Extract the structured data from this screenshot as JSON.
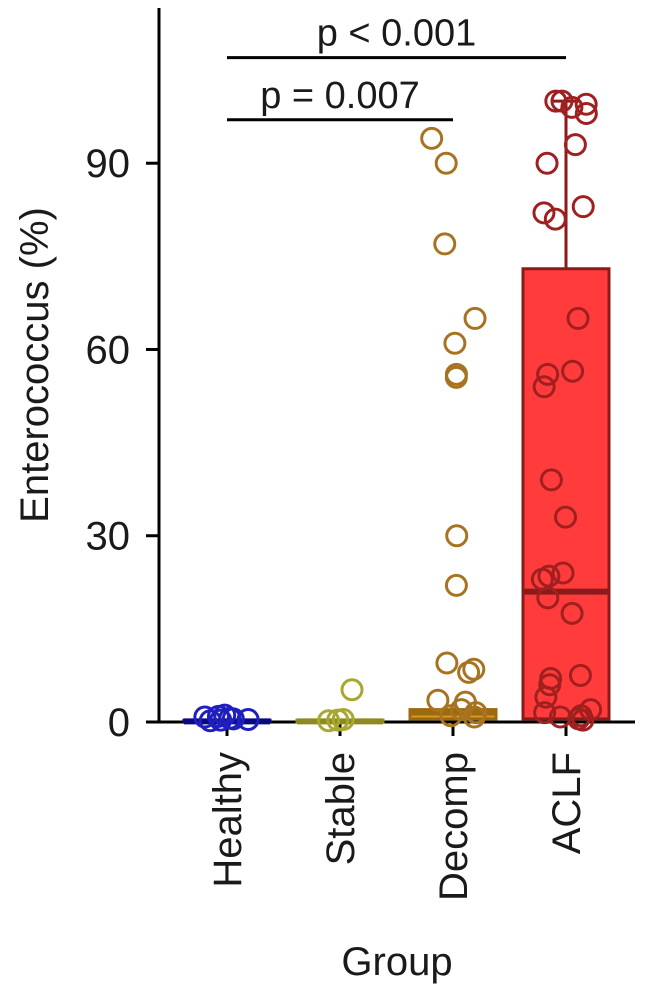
{
  "chart_data": {
    "type": "bar",
    "xlabel": "Group",
    "ylabel": "Enterococcus (%)",
    "ylim": [
      0,
      115
    ],
    "yticks": [
      0,
      30,
      60,
      90
    ],
    "categories": [
      "Healthy",
      "Stable",
      "Decomp",
      "ACLF"
    ],
    "bars": [
      {
        "group": "Healthy",
        "fill": "#1f1fbf",
        "stroke": "#0a0a80",
        "low": 0,
        "mid": 0.1,
        "high": 0.3
      },
      {
        "group": "Stable",
        "fill": "#c6c24a",
        "stroke": "#8c8a20",
        "low": 0,
        "mid": 0.1,
        "high": 0.3
      },
      {
        "group": "Decomp",
        "fill": "#e09a20",
        "stroke": "#9c6a10",
        "low": 0.5,
        "mid": 1.5,
        "high": 2.0
      },
      {
        "group": "ACLF",
        "fill": "#ff3b3b",
        "stroke": "#8c1a1a",
        "low": 0.5,
        "mid": 21,
        "high": 73,
        "whisker": 100
      }
    ],
    "points": [
      {
        "group": "Healthy",
        "color": "#1f1fbf",
        "values": [
          0.4,
          0.8,
          0.6,
          0.3,
          1.1,
          0.5,
          0.2,
          0.9
        ]
      },
      {
        "group": "Stable",
        "color": "#a8a830",
        "values": [
          5.2,
          0.4,
          0.3,
          0.2
        ]
      },
      {
        "group": "Decomp",
        "color": "#a87320",
        "values": [
          94,
          90,
          77,
          65,
          61,
          56,
          55.5,
          30,
          22,
          9.5,
          8.5,
          8,
          3.5,
          3.2,
          2,
          1.5,
          1,
          0.8
        ]
      },
      {
        "group": "ACLF",
        "color": "#a02020",
        "values": [
          100,
          100,
          99.5,
          99,
          98,
          93,
          90,
          83,
          82,
          81,
          65,
          56.5,
          56,
          54,
          39,
          33,
          24,
          23.5,
          23,
          20,
          17.5,
          7.5,
          7,
          6,
          4,
          2,
          1.5,
          1,
          0.8,
          0.5,
          0.3
        ]
      }
    ],
    "comparisons": [
      {
        "from": "Healthy",
        "to": "Decomp",
        "label": "p = 0.007",
        "level": 97
      },
      {
        "from": "Healthy",
        "to": "ACLF",
        "label": "p < 0.001",
        "level": 107
      }
    ]
  }
}
